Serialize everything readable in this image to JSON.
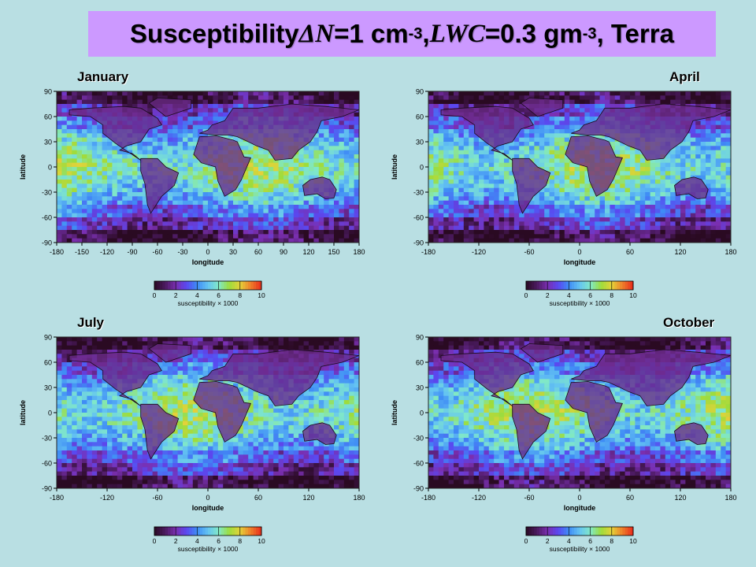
{
  "title": {
    "prefix": "Susceptibility ",
    "delta_symbol": "ΔN",
    "part2": "=1 cm",
    "exp1": "-3",
    "part3": ", ",
    "lwc": "LWC",
    "part4": "=0.3 gm",
    "exp2": "-3",
    "part5": ", Terra"
  },
  "colors": {
    "background": "#b9dfe3",
    "title_box": "#cc99ff",
    "colormap": [
      "#2a0a22",
      "#4a1a5e",
      "#7a2fb0",
      "#5a48f0",
      "#3f8cf5",
      "#64c3f2",
      "#80e8c8",
      "#9ddc3c",
      "#e4d23a",
      "#ee7f2a",
      "#e82a1c"
    ]
  },
  "chart_data": [
    {
      "type": "heatmap",
      "title": "January",
      "xlabel": "longitude",
      "ylabel": "latitude",
      "xlim": [
        -180,
        180
      ],
      "ylim": [
        -90,
        90
      ],
      "xticks": [
        -180,
        -150,
        -120,
        -90,
        -60,
        -30,
        0,
        30,
        60,
        90,
        120,
        150,
        180
      ],
      "yticks": [
        90,
        60,
        30,
        0,
        -30,
        -60,
        -90
      ],
      "colorbar": {
        "label": "susceptibility × 1000",
        "ticks": [
          0,
          2,
          4,
          6,
          8,
          10
        ],
        "range": [
          0,
          10
        ]
      }
    },
    {
      "type": "heatmap",
      "title": "April",
      "xlabel": "longitude",
      "ylabel": "latitude",
      "xlim": [
        -180,
        180
      ],
      "ylim": [
        -90,
        90
      ],
      "xticks": [
        -180,
        -120,
        -60,
        0,
        60,
        120,
        180
      ],
      "yticks": [
        90,
        60,
        30,
        0,
        -30,
        -60,
        -90
      ],
      "colorbar": {
        "label": "susceptibility × 1000",
        "ticks": [
          0,
          2,
          4,
          6,
          8,
          10
        ],
        "range": [
          0,
          10
        ]
      }
    },
    {
      "type": "heatmap",
      "title": "July",
      "xlabel": "longitude",
      "ylabel": "latitude",
      "xlim": [
        -180,
        180
      ],
      "ylim": [
        -90,
        90
      ],
      "xticks": [
        -180,
        -120,
        -60,
        0,
        60,
        120,
        180
      ],
      "yticks": [
        90,
        60,
        30,
        0,
        -30,
        -60,
        -90
      ],
      "colorbar": {
        "label": "susceptibility × 1000",
        "ticks": [
          0,
          2,
          4,
          6,
          8,
          10
        ],
        "range": [
          0,
          10
        ]
      }
    },
    {
      "type": "heatmap",
      "title": "October",
      "xlabel": "longitude",
      "ylabel": "latitude",
      "xlim": [
        -180,
        180
      ],
      "ylim": [
        -90,
        90
      ],
      "xticks": [
        -180,
        -120,
        -60,
        0,
        60,
        120,
        180
      ],
      "yticks": [
        90,
        60,
        30,
        0,
        -30,
        -60,
        -90
      ],
      "colorbar": {
        "label": "susceptibility × 1000",
        "ticks": [
          0,
          2,
          4,
          6,
          8,
          10
        ],
        "range": [
          0,
          10
        ]
      }
    }
  ]
}
